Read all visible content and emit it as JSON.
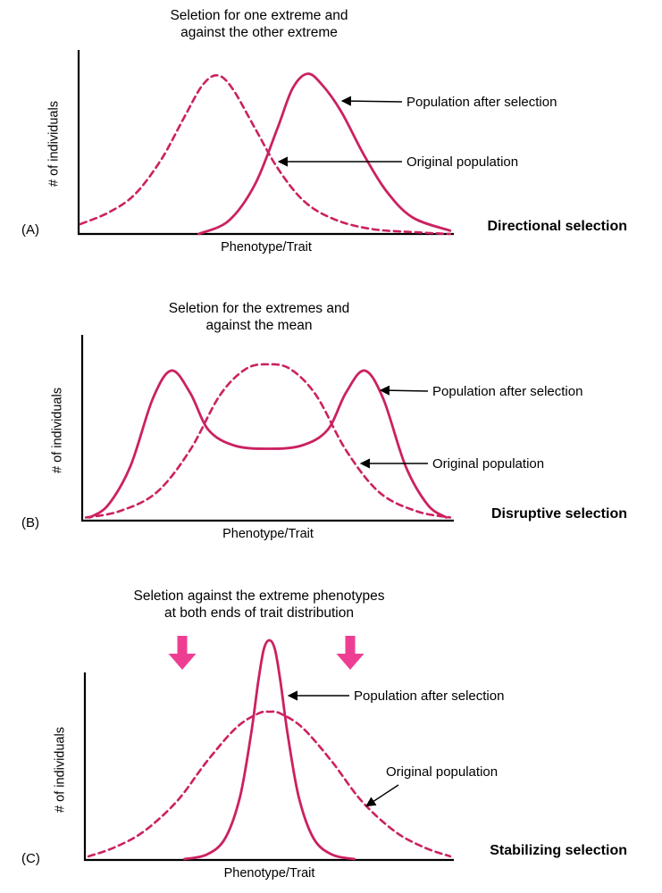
{
  "colors": {
    "curve": "#cb2161",
    "block_arrow": "#ee3e93",
    "axis": "#000000",
    "text": "#000000"
  },
  "panels": [
    {
      "letter": "(A)",
      "title": [
        "Seletion for one extreme and",
        "against the other extreme"
      ],
      "selection_type": "Directional selection",
      "x_axis_label": "Phenotype/Trait",
      "y_axis_label": "# of individuals",
      "annotations": {
        "after": "Population after selection",
        "original": "Original population"
      },
      "chart_data": {
        "type": "line",
        "title": "Directional selection",
        "xlabel": "Phenotype/Trait",
        "ylabel": "# of individuals",
        "series": [
          {
            "key": "original",
            "name": "Original population",
            "style": "dashed",
            "points": [
              [
                0.005,
                0.06
              ],
              [
                0.08,
                0.13
              ],
              [
                0.15,
                0.24
              ],
              [
                0.22,
                0.45
              ],
              [
                0.28,
                0.7
              ],
              [
                0.33,
                0.9
              ],
              [
                0.37,
                0.96
              ],
              [
                0.41,
                0.88
              ],
              [
                0.47,
                0.64
              ],
              [
                0.53,
                0.4
              ],
              [
                0.6,
                0.2
              ],
              [
                0.68,
                0.09
              ],
              [
                0.78,
                0.03
              ],
              [
                0.9,
                0.01
              ],
              [
                0.99,
                0.0
              ]
            ]
          },
          {
            "key": "after",
            "name": "Population after selection",
            "style": "solid",
            "points": [
              [
                0.32,
                0.0
              ],
              [
                0.4,
                0.08
              ],
              [
                0.47,
                0.3
              ],
              [
                0.53,
                0.64
              ],
              [
                0.57,
                0.88
              ],
              [
                0.61,
                0.97
              ],
              [
                0.65,
                0.9
              ],
              [
                0.7,
                0.74
              ],
              [
                0.76,
                0.48
              ],
              [
                0.82,
                0.26
              ],
              [
                0.89,
                0.1
              ],
              [
                0.99,
                0.02
              ]
            ]
          }
        ]
      }
    },
    {
      "letter": "(B)",
      "title": [
        "Seletion for the extremes and",
        "against the mean"
      ],
      "selection_type": "Disruptive selection",
      "x_axis_label": "Phenotype/Trait",
      "y_axis_label": "# of individuals",
      "annotations": {
        "after": "Population after selection",
        "original": "Original population"
      },
      "chart_data": {
        "type": "line",
        "title": "Disruptive selection",
        "xlabel": "Phenotype/Trait",
        "ylabel": "# of individuals",
        "series": [
          {
            "key": "original",
            "name": "Original population",
            "style": "dashed",
            "points": [
              [
                0.01,
                0.02
              ],
              [
                0.1,
                0.06
              ],
              [
                0.2,
                0.18
              ],
              [
                0.29,
                0.45
              ],
              [
                0.37,
                0.8
              ],
              [
                0.44,
                0.97
              ],
              [
                0.5,
                1.0
              ],
              [
                0.56,
                0.97
              ],
              [
                0.63,
                0.8
              ],
              [
                0.71,
                0.45
              ],
              [
                0.8,
                0.18
              ],
              [
                0.9,
                0.06
              ],
              [
                0.99,
                0.02
              ]
            ]
          },
          {
            "key": "after",
            "name": "Population after selection",
            "style": "solid",
            "points": [
              [
                0.02,
                0.02
              ],
              [
                0.07,
                0.1
              ],
              [
                0.13,
                0.35
              ],
              [
                0.19,
                0.78
              ],
              [
                0.24,
                0.96
              ],
              [
                0.29,
                0.82
              ],
              [
                0.34,
                0.58
              ],
              [
                0.41,
                0.48
              ],
              [
                0.5,
                0.46
              ],
              [
                0.59,
                0.48
              ],
              [
                0.66,
                0.58
              ],
              [
                0.71,
                0.82
              ],
              [
                0.76,
                0.96
              ],
              [
                0.81,
                0.78
              ],
              [
                0.87,
                0.35
              ],
              [
                0.93,
                0.1
              ],
              [
                0.98,
                0.02
              ]
            ]
          }
        ]
      }
    },
    {
      "letter": "(C)",
      "title": [
        "Seletion against the extreme phenotypes",
        "at both ends of trait distribution"
      ],
      "selection_type": "Stabilizing selection",
      "x_axis_label": "Phenotype/Trait",
      "y_axis_label": "# of individuals",
      "annotations": {
        "after": "Population after selection",
        "original": "Original population"
      },
      "chart_data": {
        "type": "line",
        "title": "Stabilizing selection",
        "xlabel": "Phenotype/Trait",
        "ylabel": "# of individuals",
        "series": [
          {
            "key": "original",
            "name": "Original population",
            "style": "dashed",
            "points": [
              [
                0.01,
                0.02
              ],
              [
                0.08,
                0.07
              ],
              [
                0.16,
                0.16
              ],
              [
                0.25,
                0.33
              ],
              [
                0.33,
                0.55
              ],
              [
                0.41,
                0.74
              ],
              [
                0.47,
                0.82
              ],
              [
                0.5,
                0.83
              ],
              [
                0.53,
                0.82
              ],
              [
                0.59,
                0.74
              ],
              [
                0.67,
                0.55
              ],
              [
                0.75,
                0.33
              ],
              [
                0.84,
                0.16
              ],
              [
                0.92,
                0.07
              ],
              [
                0.99,
                0.02
              ]
            ]
          },
          {
            "key": "after",
            "name": "Population after selection",
            "style": "solid",
            "points": [
              [
                0.27,
                0.005
              ],
              [
                0.33,
                0.03
              ],
              [
                0.38,
                0.12
              ],
              [
                0.42,
                0.35
              ],
              [
                0.45,
                0.7
              ],
              [
                0.47,
                1.0
              ],
              [
                0.485,
                1.18
              ],
              [
                0.5,
                1.23
              ],
              [
                0.515,
                1.18
              ],
              [
                0.53,
                1.0
              ],
              [
                0.55,
                0.7
              ],
              [
                0.58,
                0.35
              ],
              [
                0.62,
                0.12
              ],
              [
                0.67,
                0.03
              ],
              [
                0.73,
                0.005
              ]
            ]
          }
        ]
      }
    }
  ]
}
